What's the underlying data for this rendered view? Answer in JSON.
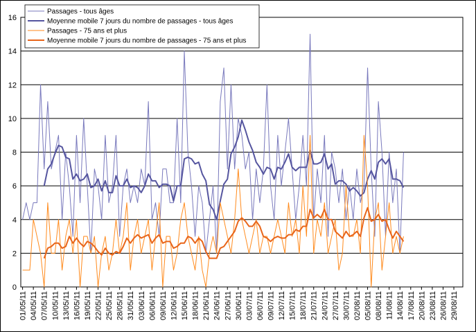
{
  "chart_data": {
    "type": "line",
    "categories": [
      "01/05/11",
      null,
      null,
      "04/05/11",
      null,
      null,
      "07/05/11",
      null,
      null,
      "10/05/11",
      null,
      null,
      "13/05/11",
      null,
      null,
      "16/05/11",
      null,
      null,
      "19/05/11",
      null,
      null,
      "22/05/11",
      null,
      null,
      "25/05/11",
      null,
      null,
      "28/05/11",
      null,
      null,
      "31/05/11",
      null,
      null,
      "03/06/11",
      null,
      null,
      "06/06/11",
      null,
      null,
      "09/06/11",
      null,
      null,
      "12/06/11",
      null,
      null,
      "15/06/11",
      null,
      null,
      "18/06/11",
      null,
      null,
      "21/06/11",
      null,
      null,
      "24/06/11",
      null,
      null,
      "27/06/11",
      null,
      null,
      "30/06/11",
      null,
      null,
      "03/07/11",
      null,
      null,
      "06/07/11",
      null,
      null,
      "09/07/11",
      null,
      null,
      "12/07/11",
      null,
      null,
      "15/07/11",
      null,
      null,
      "18/07/11",
      null,
      null,
      "21/07/11",
      null,
      null,
      "24/07/11",
      null,
      null,
      "27/07/11",
      null,
      null,
      "30/07/11",
      null,
      null,
      "02/08/11",
      null,
      null,
      "05/08/11",
      null,
      null,
      "08/08/11",
      null,
      null,
      "11/08/11",
      null,
      null,
      "14/08/11",
      null,
      null,
      "17/08/11",
      null,
      null,
      "20/08/11",
      null,
      null,
      "23/08/11",
      null,
      null,
      "26/08/11",
      null,
      null,
      "29/08/11",
      null,
      null
    ],
    "series": [
      {
        "name": "Passages - tous âges",
        "color": "#7878bc",
        "line_width": 1,
        "values": [
          4,
          5,
          4,
          5,
          5,
          12,
          7,
          11,
          7,
          8,
          9,
          4,
          8,
          6,
          3,
          9,
          5,
          10,
          6,
          2,
          7,
          6,
          4,
          9,
          5,
          6,
          9,
          3,
          6,
          7,
          5,
          6,
          5,
          7,
          6,
          11,
          4,
          5,
          3,
          7,
          7,
          5,
          5,
          10,
          5,
          14,
          8,
          6,
          3,
          6,
          5,
          2,
          4,
          6,
          2,
          11,
          13,
          7,
          12,
          7,
          10,
          9,
          7,
          8,
          4,
          7,
          5,
          7,
          12,
          6,
          4,
          9,
          6,
          8,
          10,
          7,
          4,
          6,
          9,
          6,
          15,
          4,
          7,
          5,
          9,
          3,
          8,
          7,
          5,
          7,
          4,
          6,
          4,
          7,
          5,
          6,
          13,
          7,
          3,
          11,
          8,
          3,
          8,
          5,
          7,
          2,
          8,
          null,
          null,
          null,
          null,
          null,
          null,
          null,
          null,
          null,
          null,
          null,
          null,
          null,
          null,
          null,
          null
        ]
      },
      {
        "name": "Moyenne mobile 7 jours du nombre de passages - tous âges",
        "color": "#55559f",
        "line_width": 2,
        "values": [
          null,
          null,
          null,
          null,
          null,
          null,
          6.0,
          7.0,
          7.3,
          7.9,
          8.4,
          8.3,
          7.7,
          7.6,
          6.4,
          6.7,
          6.3,
          6.4,
          6.7,
          5.9,
          6.0,
          6.4,
          5.7,
          6.3,
          5.6,
          5.6,
          6.6,
          6.0,
          6.0,
          6.4,
          5.9,
          6.0,
          5.9,
          5.6,
          6.0,
          6.7,
          6.3,
          6.3,
          5.9,
          6.1,
          6.1,
          6.0,
          5.1,
          6.0,
          6.0,
          7.6,
          7.7,
          7.6,
          7.3,
          7.4,
          6.7,
          6.3,
          4.9,
          4.6,
          4.0,
          5.1,
          6.1,
          6.4,
          7.9,
          8.3,
          8.9,
          9.9,
          9.3,
          8.6,
          8.1,
          7.4,
          7.1,
          6.7,
          7.1,
          7.0,
          6.4,
          7.1,
          7.0,
          7.4,
          7.9,
          7.1,
          6.9,
          7.1,
          7.1,
          7.1,
          8.1,
          7.3,
          7.3,
          7.4,
          7.9,
          7.0,
          7.3,
          6.1,
          6.3,
          6.3,
          6.1,
          5.7,
          5.9,
          5.7,
          5.4,
          5.6,
          6.4,
          6.9,
          6.4,
          7.4,
          7.6,
          7.3,
          7.6,
          6.4,
          6.4,
          6.3,
          5.9,
          null,
          null,
          null,
          null,
          null,
          null,
          null,
          null,
          null,
          null,
          null,
          null,
          null,
          null,
          null,
          null
        ]
      },
      {
        "name": "Passages - 75 ans et plus",
        "color": "#ff8a1c",
        "line_width": 1,
        "values": [
          1,
          1,
          1,
          4,
          3,
          2,
          0,
          5,
          2,
          2,
          4,
          1,
          3,
          4,
          2,
          4,
          0,
          3,
          3,
          2,
          3,
          0,
          2,
          3,
          1,
          2,
          4,
          2,
          3,
          5,
          1,
          3,
          4,
          2,
          3,
          4,
          1,
          3,
          5,
          0,
          3,
          3,
          1,
          2,
          4,
          5,
          3,
          2,
          1,
          3,
          1,
          0,
          2,
          3,
          2,
          5,
          4,
          3,
          2,
          4,
          7,
          4,
          3,
          2,
          3,
          4,
          2,
          3,
          3,
          2,
          3,
          4,
          3,
          2,
          5,
          3,
          4,
          2,
          6,
          3,
          9,
          2,
          4,
          3,
          5,
          2,
          3,
          4,
          1,
          2,
          6,
          3,
          3,
          4,
          2,
          9,
          6,
          0,
          4,
          5,
          1,
          3,
          5,
          2,
          3,
          2,
          3,
          null,
          null,
          null,
          null,
          null,
          null,
          null,
          null,
          null,
          null,
          null,
          null,
          null,
          null,
          null,
          null
        ]
      },
      {
        "name": "Moyenne mobile 7 jours du nombre de passages - 75 ans et plus",
        "color": "#e8651a",
        "line_width": 2,
        "values": [
          null,
          null,
          null,
          null,
          null,
          null,
          1.7,
          2.3,
          2.4,
          2.6,
          2.6,
          2.3,
          2.4,
          3.0,
          2.6,
          2.9,
          2.6,
          2.4,
          2.7,
          2.6,
          2.4,
          2.1,
          1.9,
          2.3,
          2.0,
          1.9,
          2.1,
          2.0,
          2.4,
          2.9,
          2.6,
          2.9,
          3.1,
          2.9,
          3.0,
          3.1,
          2.6,
          2.9,
          3.1,
          2.6,
          2.7,
          2.7,
          2.3,
          2.4,
          2.6,
          2.6,
          3.0,
          2.9,
          2.6,
          2.9,
          2.7,
          2.1,
          1.7,
          1.7,
          1.7,
          2.3,
          2.4,
          2.7,
          3.0,
          3.3,
          3.9,
          4.1,
          3.9,
          3.6,
          3.6,
          3.9,
          3.6,
          3.0,
          2.9,
          2.7,
          2.9,
          3.0,
          2.9,
          2.9,
          3.1,
          3.1,
          3.4,
          3.3,
          3.6,
          3.6,
          4.6,
          4.1,
          4.3,
          4.1,
          4.6,
          4.0,
          4.0,
          3.3,
          3.1,
          2.9,
          3.3,
          3.0,
          3.1,
          3.3,
          3.0,
          4.1,
          4.7,
          3.9,
          4.0,
          4.3,
          3.9,
          4.0,
          3.4,
          2.9,
          3.3,
          3.0,
          2.7,
          null,
          null,
          null,
          null,
          null,
          null,
          null,
          null,
          null,
          null,
          null,
          null,
          null,
          null,
          null,
          null
        ]
      }
    ],
    "ylim": [
      0,
      16
    ],
    "yticks": [
      0,
      2,
      4,
      6,
      8,
      10,
      12,
      14,
      16
    ],
    "grid": true,
    "legend": "upper left"
  }
}
